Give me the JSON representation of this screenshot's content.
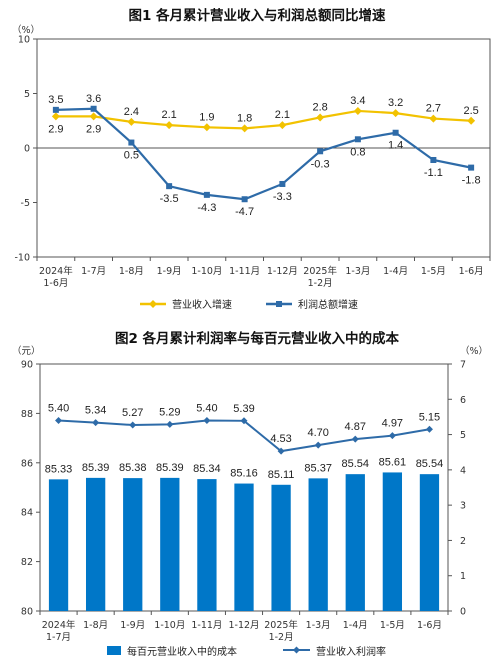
{
  "chart_data": [
    {
      "type": "line",
      "title": "图1  各月累计营业收入与利润总额同比增速",
      "y_unit": "（%）",
      "categories": [
        [
          "2024年",
          "1-6月"
        ],
        [
          "1-7月"
        ],
        [
          "1-8月"
        ],
        [
          "1-9月"
        ],
        [
          "1-10月"
        ],
        [
          "1-11月"
        ],
        [
          "1-12月"
        ],
        [
          "2025年",
          "1-2月"
        ],
        [
          "1-3月"
        ],
        [
          "1-4月"
        ],
        [
          "1-5月"
        ],
        [
          "1-6月"
        ]
      ],
      "ylim": [
        -10,
        10
      ],
      "yticks": [
        "10",
        "5",
        "0",
        "-5",
        "-10"
      ],
      "series": [
        {
          "name": "营业收入增速",
          "color": "#F2C200",
          "values": [
            2.9,
            2.9,
            2.4,
            2.1,
            1.9,
            1.8,
            2.1,
            2.8,
            3.4,
            3.2,
            2.7,
            2.5
          ],
          "labels": [
            "2.9",
            "2.9",
            "2.4",
            "2.1",
            "1.9",
            "1.8",
            "2.1",
            "2.8",
            "3.4",
            "3.2",
            "2.7",
            "2.5"
          ]
        },
        {
          "name": "利润总额增速",
          "color": "#2E6BA8",
          "values": [
            3.5,
            3.6,
            0.5,
            -3.5,
            -4.3,
            -4.7,
            -3.3,
            -0.3,
            0.8,
            1.4,
            -1.1,
            -1.8
          ],
          "labels": [
            "3.5",
            "3.6",
            "0.5",
            "-3.5",
            "-4.3",
            "-4.7",
            "-3.3",
            "-0.3",
            "0.8",
            "1.4",
            "-1.1",
            "-1.8"
          ]
        }
      ],
      "grid": false,
      "legend": "bottom"
    },
    {
      "type": "bar+line",
      "title": "图2  各月累计利润率与每百元营业收入中的成本",
      "left_unit": "（元）",
      "right_unit": "（%）",
      "categories": [
        [
          "2024年",
          "1-7月"
        ],
        [
          "1-8月"
        ],
        [
          "1-9月"
        ],
        [
          "1-10月"
        ],
        [
          "1-11月"
        ],
        [
          "1-12月"
        ],
        [
          "2025年",
          "1-2月"
        ],
        [
          "1-3月"
        ],
        [
          "1-4月"
        ],
        [
          "1-5月"
        ],
        [
          "1-6月"
        ]
      ],
      "left_ylim": [
        80,
        90
      ],
      "left_yticks": [
        "90",
        "88",
        "86",
        "84",
        "82",
        "80"
      ],
      "right_ylim": [
        0,
        7
      ],
      "right_yticks": [
        "7",
        "6",
        "5",
        "4",
        "3",
        "2",
        "1",
        "0"
      ],
      "bars": {
        "name": "每百元营业收入中的成本",
        "color": "#0077C8",
        "values": [
          85.33,
          85.39,
          85.38,
          85.39,
          85.34,
          85.16,
          85.11,
          85.37,
          85.54,
          85.61,
          85.54
        ],
        "labels": [
          "85.33",
          "85.39",
          "85.38",
          "85.39",
          "85.34",
          "85.16",
          "85.11",
          "85.37",
          "85.54",
          "85.61",
          "85.54"
        ]
      },
      "line": {
        "name": "营业收入利润率",
        "color": "#2E6BA8",
        "values": [
          5.4,
          5.34,
          5.27,
          5.29,
          5.4,
          5.39,
          4.53,
          4.7,
          4.87,
          4.97,
          5.15
        ],
        "labels": [
          "5.40",
          "5.34",
          "5.27",
          "5.29",
          "5.40",
          "5.39",
          "4.53",
          "4.70",
          "4.87",
          "4.97",
          "5.15"
        ]
      },
      "grid": false,
      "legend": "bottom"
    }
  ]
}
